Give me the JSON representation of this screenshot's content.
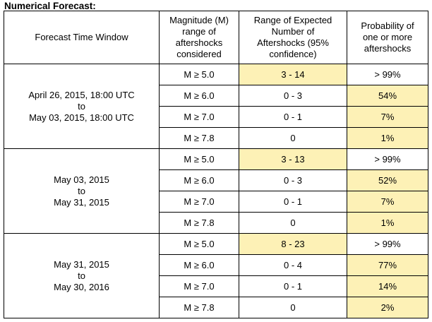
{
  "title": "Numerical Forecast:",
  "headers": {
    "col1": "Forecast Time Window",
    "col2": [
      "Magnitude (M)",
      "range of",
      "aftershocks",
      "considered"
    ],
    "col3": [
      "Range of Expected",
      "Number of",
      "Aftershocks (95%",
      "confidence)"
    ],
    "col4": [
      "Probability of",
      "one or more",
      "aftershocks"
    ]
  },
  "highlight_color": "#fdf1b6",
  "groups": [
    {
      "window": [
        "April 26, 2015, 18:00 UTC",
        "to",
        "May 03, 2015, 18:00 UTC"
      ],
      "rows": [
        {
          "mag": "M ≥ 5.0",
          "range": "3 - 14",
          "prob": "> 99%"
        },
        {
          "mag": "M ≥ 6.0",
          "range": "0 - 3",
          "prob": "54%"
        },
        {
          "mag": "M ≥ 7.0",
          "range": "0 - 1",
          "prob": "7%"
        },
        {
          "mag": "M ≥ 7.8",
          "range": "0",
          "prob": "1%"
        }
      ]
    },
    {
      "window": [
        "May 03, 2015",
        "to",
        "May 31, 2015"
      ],
      "rows": [
        {
          "mag": "M ≥ 5.0",
          "range": "3 - 13",
          "prob": "> 99%"
        },
        {
          "mag": "M ≥ 6.0",
          "range": "0 - 3",
          "prob": "52%"
        },
        {
          "mag": "M ≥ 7.0",
          "range": "0 - 1",
          "prob": "7%"
        },
        {
          "mag": "M ≥ 7.8",
          "range": "0",
          "prob": "1%"
        }
      ]
    },
    {
      "window": [
        "May 31, 2015",
        "to",
        "May 30, 2016"
      ],
      "rows": [
        {
          "mag": "M ≥ 5.0",
          "range": "8 - 23",
          "prob": "> 99%"
        },
        {
          "mag": "M ≥ 6.0",
          "range": "0 - 4",
          "prob": "77%"
        },
        {
          "mag": "M ≥ 7.0",
          "range": "0 - 1",
          "prob": "14%"
        },
        {
          "mag": "M ≥ 7.8",
          "range": "0",
          "prob": "2%"
        }
      ]
    }
  ]
}
